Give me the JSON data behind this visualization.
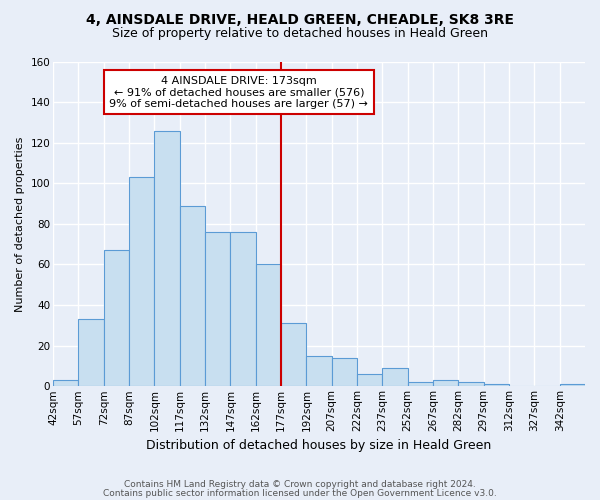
{
  "title": "4, AINSDALE DRIVE, HEALD GREEN, CHEADLE, SK8 3RE",
  "subtitle": "Size of property relative to detached houses in Heald Green",
  "xlabel": "Distribution of detached houses by size in Heald Green",
  "ylabel": "Number of detached properties",
  "bin_labels": [
    "42sqm",
    "57sqm",
    "72sqm",
    "87sqm",
    "102sqm",
    "117sqm",
    "132sqm",
    "147sqm",
    "162sqm",
    "177sqm",
    "192sqm",
    "207sqm",
    "222sqm",
    "237sqm",
    "252sqm",
    "267sqm",
    "282sqm",
    "297sqm",
    "312sqm",
    "327sqm",
    "342sqm"
  ],
  "bin_left_edges": [
    42,
    57,
    72,
    87,
    102,
    117,
    132,
    147,
    162,
    177,
    192,
    207,
    222,
    237,
    252,
    267,
    282,
    297,
    312,
    327,
    342
  ],
  "bin_width": 15,
  "bar_heights": [
    3,
    33,
    67,
    103,
    126,
    89,
    76,
    76,
    60,
    31,
    15,
    14,
    6,
    9,
    2,
    3,
    2,
    1,
    0,
    0,
    1
  ],
  "bar_color": "#c8dff0",
  "bar_edge_color": "#5b9bd5",
  "vline_x": 177,
  "vline_color": "#cc0000",
  "annotation_title": "4 AINSDALE DRIVE: 173sqm",
  "annotation_line1": "← 91% of detached houses are smaller (576)",
  "annotation_line2": "9% of semi-detached houses are larger (57) →",
  "annotation_box_facecolor": "#ffffff",
  "annotation_box_edgecolor": "#cc0000",
  "ylim_min": 0,
  "ylim_max": 160,
  "yticks": [
    0,
    20,
    40,
    60,
    80,
    100,
    120,
    140,
    160
  ],
  "footer1": "Contains HM Land Registry data © Crown copyright and database right 2024.",
  "footer2": "Contains public sector information licensed under the Open Government Licence v3.0.",
  "bg_color": "#e8eef8",
  "grid_color": "#ffffff",
  "title_fontsize": 10,
  "subtitle_fontsize": 9,
  "xlabel_fontsize": 9,
  "ylabel_fontsize": 8,
  "tick_fontsize": 7.5,
  "footer_fontsize": 6.5
}
